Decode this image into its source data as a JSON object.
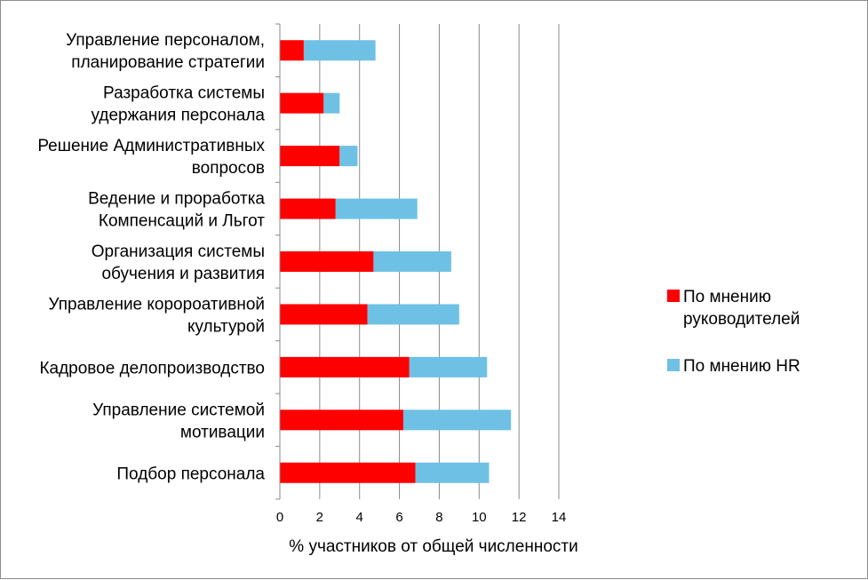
{
  "chart_data": {
    "type": "bar",
    "orientation": "horizontal",
    "stacked": true,
    "categories": [
      [
        "Управление персоналом,",
        "планирование стратегии"
      ],
      [
        "Разработка системы",
        "удержания персонала"
      ],
      [
        "Решение Административных",
        "вопросов"
      ],
      [
        "Ведение и проработка",
        "Компенсаций и Льгот"
      ],
      [
        "Организация системы",
        "обучения и развития"
      ],
      [
        "Управление коророативной",
        "культурой"
      ],
      [
        "Кадровое делопроизводство"
      ],
      [
        "Управление системой",
        "мотивации"
      ],
      [
        "Подбор персонала"
      ]
    ],
    "series": [
      {
        "name": "По мнению руководителей",
        "legend_lines": [
          "По мнению",
          "руководителей"
        ],
        "color": "#ff0000",
        "values": [
          1.2,
          2.2,
          3.0,
          2.8,
          4.7,
          4.4,
          6.5,
          6.2,
          6.8
        ]
      },
      {
        "name": "По мнению HR",
        "legend_lines": [
          "По мнению HR"
        ],
        "color": "#6ec1e4",
        "values": [
          3.6,
          0.8,
          0.9,
          4.1,
          3.9,
          4.6,
          3.9,
          5.4,
          3.7
        ]
      }
    ],
    "xlabel": "% участников от общей численности",
    "xlim": [
      0,
      14
    ],
    "xticks": [
      0,
      2,
      4,
      6,
      8,
      10,
      12,
      14
    ],
    "grid": "vertical",
    "legend_position": "right"
  }
}
